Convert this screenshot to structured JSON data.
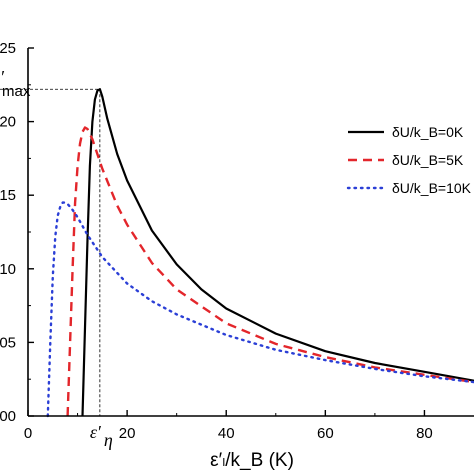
{
  "chart_data": {
    "type": "line",
    "xlabel": "ε′ₗ/k_B (K)",
    "ylabel": "",
    "xlim": [
      0,
      90
    ],
    "ylim": [
      0,
      25
    ],
    "x_ticks": [
      0,
      20,
      40,
      60,
      80
    ],
    "y_ticks": [
      0,
      5,
      10,
      15,
      20,
      25
    ],
    "x_tick_labels": [
      "0",
      "20",
      "40",
      "60",
      "80"
    ],
    "y_tick_labels": [
      "00",
      "05",
      "10",
      "15",
      "20",
      "25"
    ],
    "annotations": {
      "ymax_label": "max",
      "ymax_value": 22.2,
      "xeta_label": "ε′",
      "xeta_sub": "η",
      "xeta_value": 14.5
    },
    "legend": {
      "position": "top-right"
    },
    "series": [
      {
        "name": "δU/k_B=0K",
        "style": "solid",
        "color": "#000000",
        "x": [
          11,
          11.5,
          12,
          12.5,
          13,
          13.5,
          14,
          14.5,
          15,
          16,
          18,
          20,
          25,
          30,
          35,
          40,
          50,
          60,
          70,
          80,
          90
        ],
        "y": [
          0,
          6,
          12,
          17,
          20,
          21.5,
          22.1,
          22.2,
          21.7,
          20.2,
          17.8,
          16.0,
          12.6,
          10.3,
          8.6,
          7.3,
          5.6,
          4.4,
          3.6,
          3.0,
          2.4
        ]
      },
      {
        "name": "δU/k_B=5K",
        "style": "dashed",
        "color": "#e3262b",
        "x": [
          8,
          8.5,
          9,
          9.5,
          10,
          10.5,
          11,
          11.5,
          12,
          13,
          15,
          18,
          20,
          25,
          30,
          40,
          50,
          60,
          70,
          80,
          90
        ],
        "y": [
          0,
          5,
          10,
          14.5,
          17,
          18.5,
          19.3,
          19.6,
          19.5,
          18.8,
          16.8,
          14.3,
          13.0,
          10.4,
          8.6,
          6.3,
          4.9,
          4.0,
          3.3,
          2.8,
          2.3
        ]
      },
      {
        "name": "δU/k_B=10K",
        "style": "dotted",
        "color": "#2b3fd6",
        "x": [
          4,
          4.5,
          5,
          5.5,
          6,
          6.5,
          7,
          7.5,
          8,
          9,
          10,
          12,
          15,
          20,
          25,
          30,
          40,
          50,
          60,
          70,
          80,
          90
        ],
        "y": [
          0,
          5,
          9.5,
          12.2,
          13.6,
          14.2,
          14.5,
          14.5,
          14.4,
          14.0,
          13.5,
          12.3,
          10.8,
          9.0,
          7.8,
          6.9,
          5.5,
          4.5,
          3.8,
          3.2,
          2.7,
          2.3
        ]
      }
    ]
  }
}
